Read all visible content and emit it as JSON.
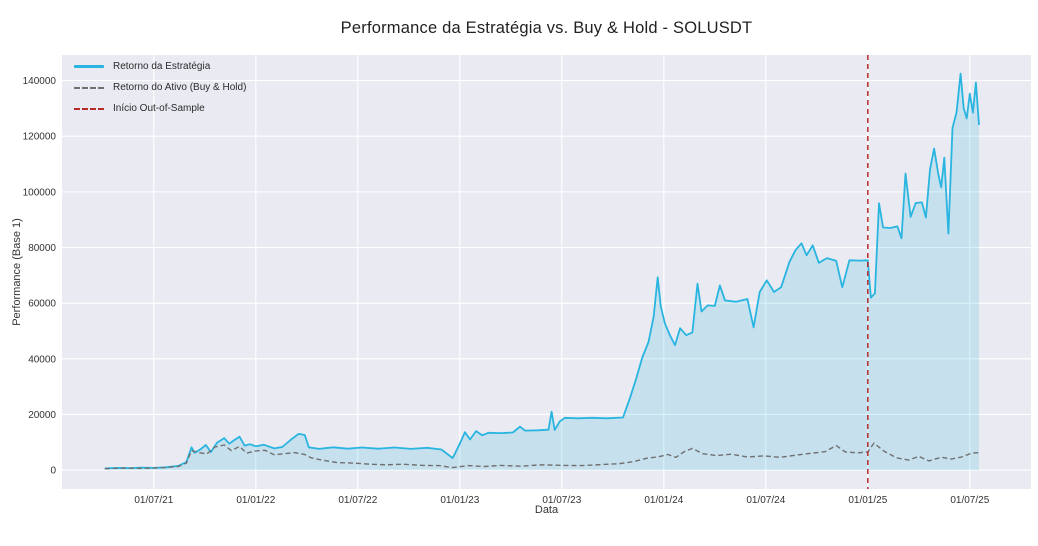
{
  "chart_data": {
    "type": "line",
    "title": "Performance da Estratégia vs. Buy & Hold - SOLUSDT",
    "xlabel": "Data",
    "ylabel": "Performance (Base 1)",
    "xlim": [
      2021.05,
      2025.8
    ],
    "ylim": [
      -6800,
      149200
    ],
    "grid": true,
    "legend_position": "upper-left",
    "plot_bg": "#e9eaf2",
    "grid_color": "#ffffff",
    "xticks": [
      {
        "value": 2021.5,
        "label": "01/07/21"
      },
      {
        "value": 2022.0,
        "label": "01/01/22"
      },
      {
        "value": 2022.5,
        "label": "01/07/22"
      },
      {
        "value": 2023.0,
        "label": "01/01/23"
      },
      {
        "value": 2023.5,
        "label": "01/07/23"
      },
      {
        "value": 2024.0,
        "label": "01/01/24"
      },
      {
        "value": 2024.5,
        "label": "01/07/24"
      },
      {
        "value": 2025.0,
        "label": "01/01/25"
      },
      {
        "value": 2025.5,
        "label": "01/07/25"
      }
    ],
    "yticks": [
      {
        "value": 0,
        "label": "0"
      },
      {
        "value": 20000,
        "label": "20000"
      },
      {
        "value": 40000,
        "label": "40000"
      },
      {
        "value": 60000,
        "label": "60000"
      },
      {
        "value": 80000,
        "label": "80000"
      },
      {
        "value": 100000,
        "label": "100000"
      },
      {
        "value": 120000,
        "label": "120000"
      },
      {
        "value": 140000,
        "label": "140000"
      }
    ],
    "vline": {
      "label": "Início Out-of-Sample",
      "x": 2025.0,
      "color": "#b92b2b",
      "style": "dashed"
    },
    "series": [
      {
        "name": "Retorno da Estratégia",
        "color": "#29b5e0",
        "fill": "rgba(41,181,224,0.18)",
        "style": "solid",
        "points": [
          [
            2021.26,
            600
          ],
          [
            2021.32,
            800
          ],
          [
            2021.38,
            700
          ],
          [
            2021.44,
            900
          ],
          [
            2021.5,
            800
          ],
          [
            2021.56,
            1000
          ],
          [
            2021.62,
            1500
          ],
          [
            2021.66,
            2900
          ],
          [
            2021.685,
            8200
          ],
          [
            2021.7,
            6200
          ],
          [
            2021.73,
            7500
          ],
          [
            2021.755,
            9000
          ],
          [
            2021.78,
            6500
          ],
          [
            2021.81,
            9800
          ],
          [
            2021.845,
            11500
          ],
          [
            2021.87,
            9500
          ],
          [
            2021.895,
            10800
          ],
          [
            2021.92,
            12000
          ],
          [
            2021.945,
            8800
          ],
          [
            2021.97,
            9300
          ],
          [
            2022.0,
            8600
          ],
          [
            2022.04,
            9100
          ],
          [
            2022.09,
            7800
          ],
          [
            2022.13,
            8300
          ],
          [
            2022.17,
            10800
          ],
          [
            2022.21,
            13000
          ],
          [
            2022.24,
            12600
          ],
          [
            2022.26,
            8200
          ],
          [
            2022.31,
            7600
          ],
          [
            2022.38,
            8200
          ],
          [
            2022.45,
            7700
          ],
          [
            2022.52,
            8100
          ],
          [
            2022.6,
            7700
          ],
          [
            2022.68,
            8100
          ],
          [
            2022.76,
            7600
          ],
          [
            2022.84,
            8000
          ],
          [
            2022.91,
            7400
          ],
          [
            2022.965,
            4300
          ],
          [
            2023.0,
            9500
          ],
          [
            2023.025,
            13600
          ],
          [
            2023.05,
            11000
          ],
          [
            2023.08,
            14000
          ],
          [
            2023.11,
            12500
          ],
          [
            2023.14,
            13400
          ],
          [
            2023.2,
            13300
          ],
          [
            2023.26,
            13500
          ],
          [
            2023.295,
            15600
          ],
          [
            2023.32,
            14200
          ],
          [
            2023.38,
            14300
          ],
          [
            2023.435,
            14500
          ],
          [
            2023.45,
            21000
          ],
          [
            2023.465,
            14400
          ],
          [
            2023.49,
            17500
          ],
          [
            2023.515,
            18800
          ],
          [
            2023.58,
            18600
          ],
          [
            2023.65,
            18800
          ],
          [
            2023.72,
            18600
          ],
          [
            2023.8,
            18900
          ],
          [
            2023.835,
            26000
          ],
          [
            2023.865,
            33000
          ],
          [
            2023.895,
            40600
          ],
          [
            2023.925,
            46000
          ],
          [
            2023.95,
            55000
          ],
          [
            2023.97,
            69300
          ],
          [
            2023.985,
            59000
          ],
          [
            2024.005,
            52800
          ],
          [
            2024.03,
            48500
          ],
          [
            2024.055,
            44900
          ],
          [
            2024.08,
            51000
          ],
          [
            2024.11,
            48500
          ],
          [
            2024.14,
            49500
          ],
          [
            2024.165,
            67000
          ],
          [
            2024.185,
            57000
          ],
          [
            2024.215,
            59200
          ],
          [
            2024.25,
            59000
          ],
          [
            2024.275,
            66400
          ],
          [
            2024.3,
            61000
          ],
          [
            2024.355,
            60500
          ],
          [
            2024.41,
            61500
          ],
          [
            2024.44,
            51300
          ],
          [
            2024.47,
            64000
          ],
          [
            2024.505,
            68200
          ],
          [
            2024.54,
            64000
          ],
          [
            2024.575,
            65700
          ],
          [
            2024.615,
            74700
          ],
          [
            2024.645,
            79000
          ],
          [
            2024.675,
            81500
          ],
          [
            2024.7,
            77200
          ],
          [
            2024.73,
            80800
          ],
          [
            2024.76,
            74500
          ],
          [
            2024.8,
            76200
          ],
          [
            2024.845,
            75200
          ],
          [
            2024.875,
            65700
          ],
          [
            2024.91,
            75400
          ],
          [
            2024.96,
            75300
          ],
          [
            2025.0,
            75400
          ],
          [
            2025.015,
            62000
          ],
          [
            2025.035,
            63500
          ],
          [
            2025.055,
            95900
          ],
          [
            2025.075,
            87200
          ],
          [
            2025.11,
            87000
          ],
          [
            2025.145,
            87600
          ],
          [
            2025.165,
            83300
          ],
          [
            2025.185,
            106600
          ],
          [
            2025.21,
            91000
          ],
          [
            2025.235,
            96000
          ],
          [
            2025.265,
            96200
          ],
          [
            2025.285,
            90800
          ],
          [
            2025.305,
            108000
          ],
          [
            2025.325,
            115600
          ],
          [
            2025.345,
            106600
          ],
          [
            2025.36,
            101600
          ],
          [
            2025.375,
            112300
          ],
          [
            2025.395,
            85000
          ],
          [
            2025.415,
            123000
          ],
          [
            2025.435,
            128500
          ],
          [
            2025.455,
            142500
          ],
          [
            2025.47,
            130000
          ],
          [
            2025.485,
            126400
          ],
          [
            2025.5,
            135300
          ],
          [
            2025.515,
            128500
          ],
          [
            2025.53,
            139300
          ],
          [
            2025.545,
            124000
          ]
        ]
      },
      {
        "name": "Retorno do Ativo (Buy & Hold)",
        "color": "#707070",
        "style": "dashed",
        "points": [
          [
            2021.26,
            500
          ],
          [
            2021.35,
            700
          ],
          [
            2021.45,
            600
          ],
          [
            2021.55,
            900
          ],
          [
            2021.62,
            1300
          ],
          [
            2021.66,
            2500
          ],
          [
            2021.685,
            7000
          ],
          [
            2021.72,
            6300
          ],
          [
            2021.76,
            5800
          ],
          [
            2021.8,
            8300
          ],
          [
            2021.845,
            9000
          ],
          [
            2021.88,
            7000
          ],
          [
            2021.92,
            8500
          ],
          [
            2021.955,
            6100
          ],
          [
            2022.0,
            6900
          ],
          [
            2022.045,
            7100
          ],
          [
            2022.09,
            5500
          ],
          [
            2022.14,
            5900
          ],
          [
            2022.19,
            6300
          ],
          [
            2022.24,
            5600
          ],
          [
            2022.27,
            4400
          ],
          [
            2022.33,
            3500
          ],
          [
            2022.4,
            2700
          ],
          [
            2022.48,
            2500
          ],
          [
            2022.56,
            2100
          ],
          [
            2022.64,
            1900
          ],
          [
            2022.72,
            2100
          ],
          [
            2022.82,
            1700
          ],
          [
            2022.9,
            1600
          ],
          [
            2022.965,
            900
          ],
          [
            2023.04,
            1600
          ],
          [
            2023.12,
            1300
          ],
          [
            2023.2,
            1700
          ],
          [
            2023.3,
            1400
          ],
          [
            2023.4,
            1900
          ],
          [
            2023.5,
            1700
          ],
          [
            2023.6,
            1600
          ],
          [
            2023.7,
            2000
          ],
          [
            2023.78,
            2300
          ],
          [
            2023.85,
            3000
          ],
          [
            2023.92,
            4300
          ],
          [
            2023.97,
            4700
          ],
          [
            2024.02,
            5600
          ],
          [
            2024.06,
            4600
          ],
          [
            2024.1,
            6600
          ],
          [
            2024.14,
            7800
          ],
          [
            2024.19,
            5900
          ],
          [
            2024.26,
            5200
          ],
          [
            2024.33,
            5700
          ],
          [
            2024.41,
            4700
          ],
          [
            2024.49,
            5100
          ],
          [
            2024.57,
            4600
          ],
          [
            2024.65,
            5400
          ],
          [
            2024.73,
            6100
          ],
          [
            2024.79,
            6600
          ],
          [
            2024.845,
            8800
          ],
          [
            2024.89,
            6500
          ],
          [
            2024.95,
            6200
          ],
          [
            2025.0,
            6500
          ],
          [
            2025.03,
            9700
          ],
          [
            2025.08,
            6800
          ],
          [
            2025.14,
            4400
          ],
          [
            2025.2,
            3600
          ],
          [
            2025.25,
            4900
          ],
          [
            2025.3,
            3300
          ],
          [
            2025.36,
            4600
          ],
          [
            2025.41,
            4000
          ],
          [
            2025.46,
            4700
          ],
          [
            2025.51,
            6100
          ],
          [
            2025.545,
            6300
          ]
        ]
      }
    ]
  }
}
